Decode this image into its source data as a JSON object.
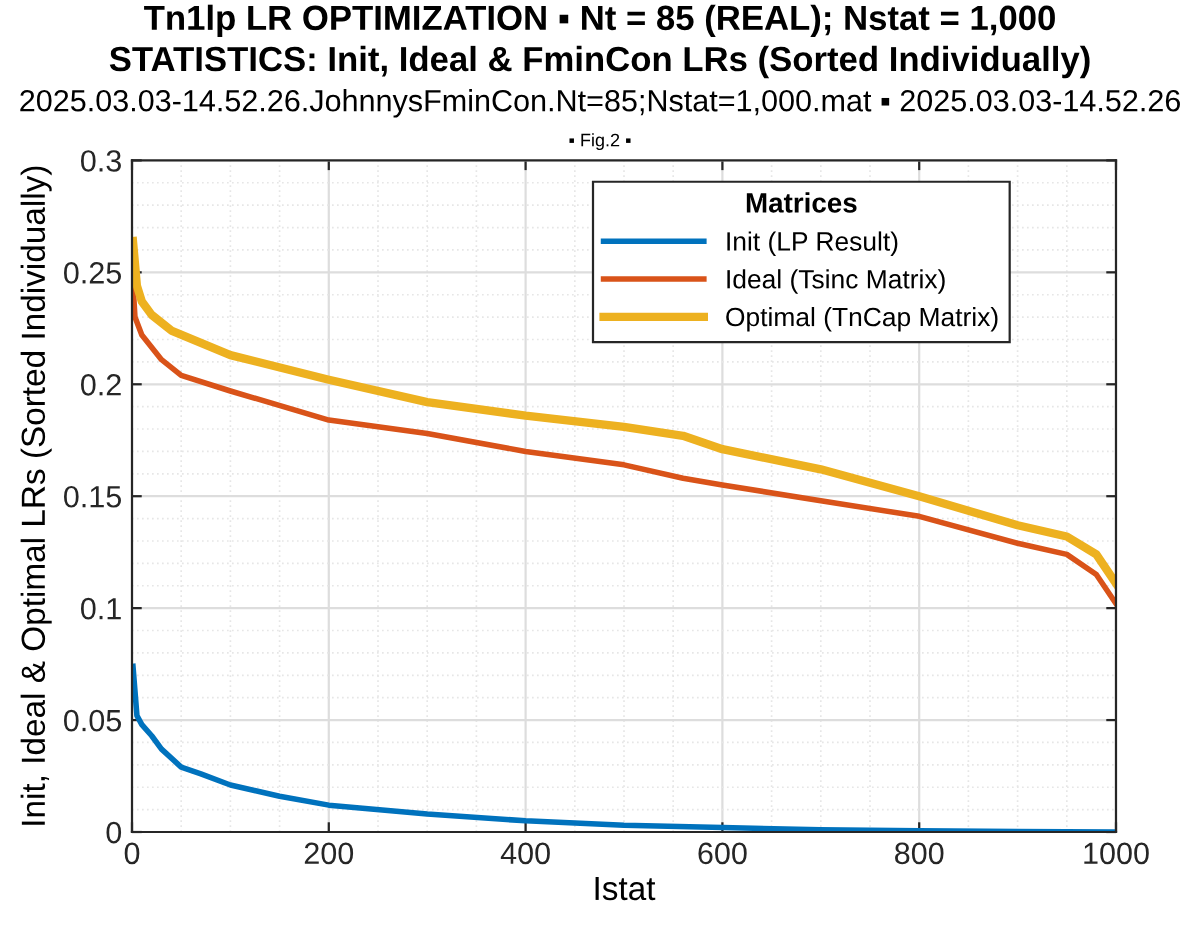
{
  "chart_data": {
    "type": "line",
    "title": "Tn1lp LR OPTIMIZATION ▪ Nt = 85 (REAL); Nstat = 1,000\nSTATISTICS: Init, Ideal & FminCon LRs (Sorted Individually)",
    "subtitle": "2025.03.03-14.52.26.JohnnysFminCon.Nt=85;Nstat=1,000.mat ▪ 2025.03.03-14.52.26",
    "annotations": [
      "▪ Fig.2 ▪"
    ],
    "xlabel": "Istat",
    "ylabel": "Init, Ideal & Optimal LRs (Sorted Individually)",
    "legend_title": "Matrices",
    "legend": "top right",
    "grid": true,
    "xlim": [
      0,
      1000
    ],
    "xticks": [
      0,
      200,
      400,
      600,
      800,
      1000
    ],
    "ylim": [
      0,
      0.3
    ],
    "yticks": [
      0,
      0.05,
      0.1,
      0.15,
      0.2,
      0.25,
      0.3
    ],
    "series": [
      {
        "name": "Init (LP Result)",
        "color": "#0072bd",
        "x": [
          1,
          5,
          10,
          20,
          30,
          50,
          70,
          100,
          150,
          200,
          300,
          400,
          500,
          600,
          700,
          800,
          1000
        ],
        "values": [
          0.074,
          0.052,
          0.048,
          0.043,
          0.037,
          0.029,
          0.026,
          0.021,
          0.016,
          0.012,
          0.008,
          0.005,
          0.003,
          0.002,
          0.001,
          0.0005,
          0.0
        ]
      },
      {
        "name": "Ideal (Tsinc Matrix)",
        "color": "#d95319",
        "x": [
          1,
          3,
          10,
          30,
          50,
          100,
          200,
          300,
          400,
          500,
          560,
          600,
          700,
          800,
          900,
          950,
          980,
          1000
        ],
        "values": [
          0.245,
          0.23,
          0.222,
          0.211,
          0.204,
          0.197,
          0.184,
          0.178,
          0.17,
          0.164,
          0.158,
          0.155,
          0.148,
          0.141,
          0.129,
          0.124,
          0.115,
          0.102
        ]
      },
      {
        "name": "Optimal (TnCap Matrix)",
        "color": "#edb120",
        "x": [
          1,
          5,
          10,
          20,
          40,
          100,
          200,
          300,
          400,
          500,
          560,
          600,
          700,
          800,
          900,
          950,
          980,
          1000
        ],
        "values": [
          0.264,
          0.244,
          0.237,
          0.231,
          0.224,
          0.213,
          0.202,
          0.192,
          0.186,
          0.181,
          0.177,
          0.171,
          0.162,
          0.15,
          0.137,
          0.132,
          0.124,
          0.111
        ]
      }
    ]
  }
}
